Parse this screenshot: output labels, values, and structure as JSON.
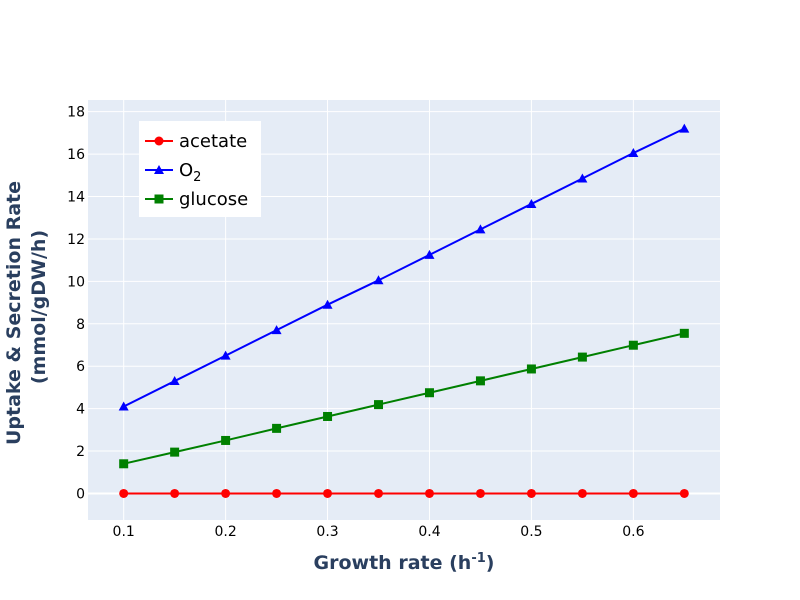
{
  "chart_data": {
    "type": "line",
    "xlabel": "Growth rate (h",
    "xlabel_sup": "-1",
    "xlabel_suffix": ")",
    "ylabel_line1": "Uptake & Secretion Rate",
    "ylabel_line2": "(mmol/gDW/h)",
    "xlim": [
      0.065,
      0.685
    ],
    "ylim": [
      -1.25,
      18.55
    ],
    "x_ticks": [
      0.1,
      0.2,
      0.3,
      0.4,
      0.5,
      0.6
    ],
    "x_tick_labels": [
      "0.1",
      "0.2",
      "0.3",
      "0.4",
      "0.5",
      "0.6"
    ],
    "y_ticks": [
      0,
      2,
      4,
      6,
      8,
      10,
      12,
      14,
      16,
      18
    ],
    "y_tick_labels": [
      "0",
      "2",
      "4",
      "6",
      "8",
      "10",
      "12",
      "14",
      "16",
      "18"
    ],
    "grid": true,
    "plot_background": "#e5ecf6",
    "grid_color": "#ffffff",
    "legend_position": "top-left",
    "x": [
      0.1,
      0.15,
      0.2,
      0.25,
      0.3,
      0.35,
      0.4,
      0.45,
      0.5,
      0.55,
      0.6,
      0.65
    ],
    "series": [
      {
        "name": "acetate",
        "color": "#ff0000",
        "marker": "circle",
        "values": [
          0,
          0,
          0,
          0,
          0,
          0,
          0,
          0,
          0,
          0,
          0,
          0
        ]
      },
      {
        "name": "O",
        "name_sub": "2",
        "color": "#0000ff",
        "marker": "triangle",
        "values": [
          4.1,
          5.3,
          6.5,
          7.7,
          8.9,
          10.05,
          11.25,
          12.45,
          13.65,
          14.85,
          16.05,
          17.2
        ]
      },
      {
        "name": "glucose",
        "color": "#008000",
        "marker": "square",
        "values": [
          1.4,
          1.95,
          2.5,
          3.07,
          3.63,
          4.19,
          4.75,
          5.31,
          5.87,
          6.43,
          6.99,
          7.55
        ]
      }
    ]
  }
}
